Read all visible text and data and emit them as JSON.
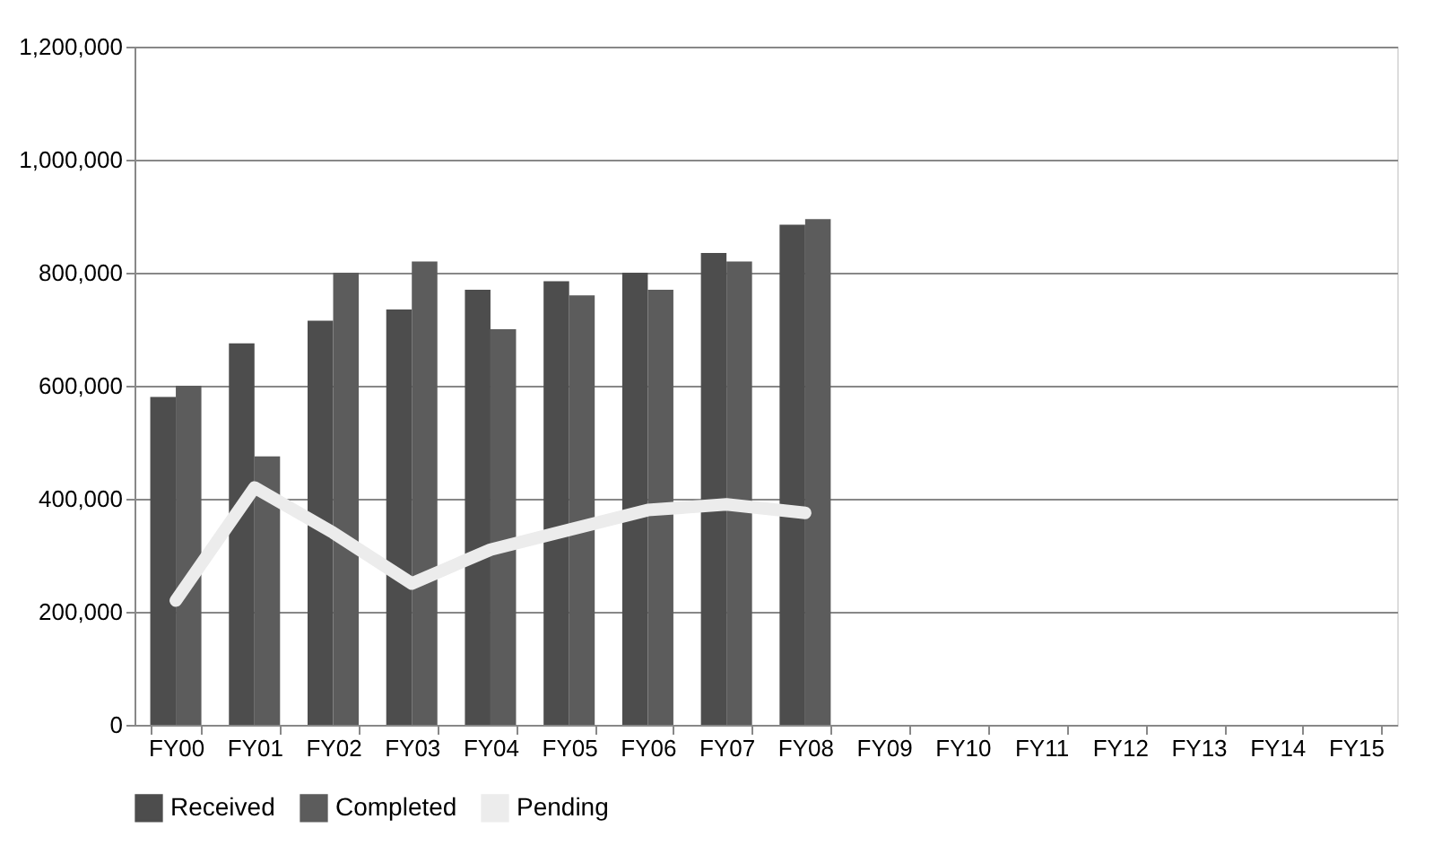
{
  "chart_data": {
    "type": "bar",
    "categories": [
      "FY00",
      "FY01",
      "FY02",
      "FY03",
      "FY04",
      "FY05",
      "FY06",
      "FY07",
      "FY08",
      "FY09",
      "FY10",
      "FY11",
      "FY12",
      "FY13",
      "FY14",
      "FY15"
    ],
    "series": [
      {
        "name": "Received",
        "color": "#4d4d4d",
        "values": [
          580000,
          675000,
          715000,
          735000,
          770000,
          785000,
          800000,
          835000,
          885000,
          null,
          null,
          null,
          null,
          null,
          null,
          null
        ]
      },
      {
        "name": "Completed",
        "color": "#5c5c5c",
        "values": [
          600000,
          475000,
          800000,
          820000,
          700000,
          760000,
          770000,
          820000,
          895000,
          null,
          null,
          null,
          null,
          null,
          null,
          null
        ]
      },
      {
        "name": "Pending",
        "type": "line",
        "color": "#ececec",
        "values": [
          220000,
          420000,
          340000,
          250000,
          310000,
          345000,
          380000,
          390000,
          375000,
          null,
          null,
          null,
          null,
          null,
          null,
          null
        ]
      }
    ],
    "ylim": [
      0,
      1200000
    ],
    "yticks": [
      0,
      {
        "value": 200000,
        "label": "200,000"
      },
      {
        "value": 400000,
        "label": "400,000"
      },
      {
        "value": 600000,
        "label": "600,000"
      },
      {
        "value": 800000,
        "label": "800,000"
      },
      {
        "value": 1000000,
        "label": "1,000,000"
      },
      {
        "value": 1200000,
        "label": "1,200,000"
      }
    ],
    "grid": "y",
    "legend": "bottom"
  }
}
